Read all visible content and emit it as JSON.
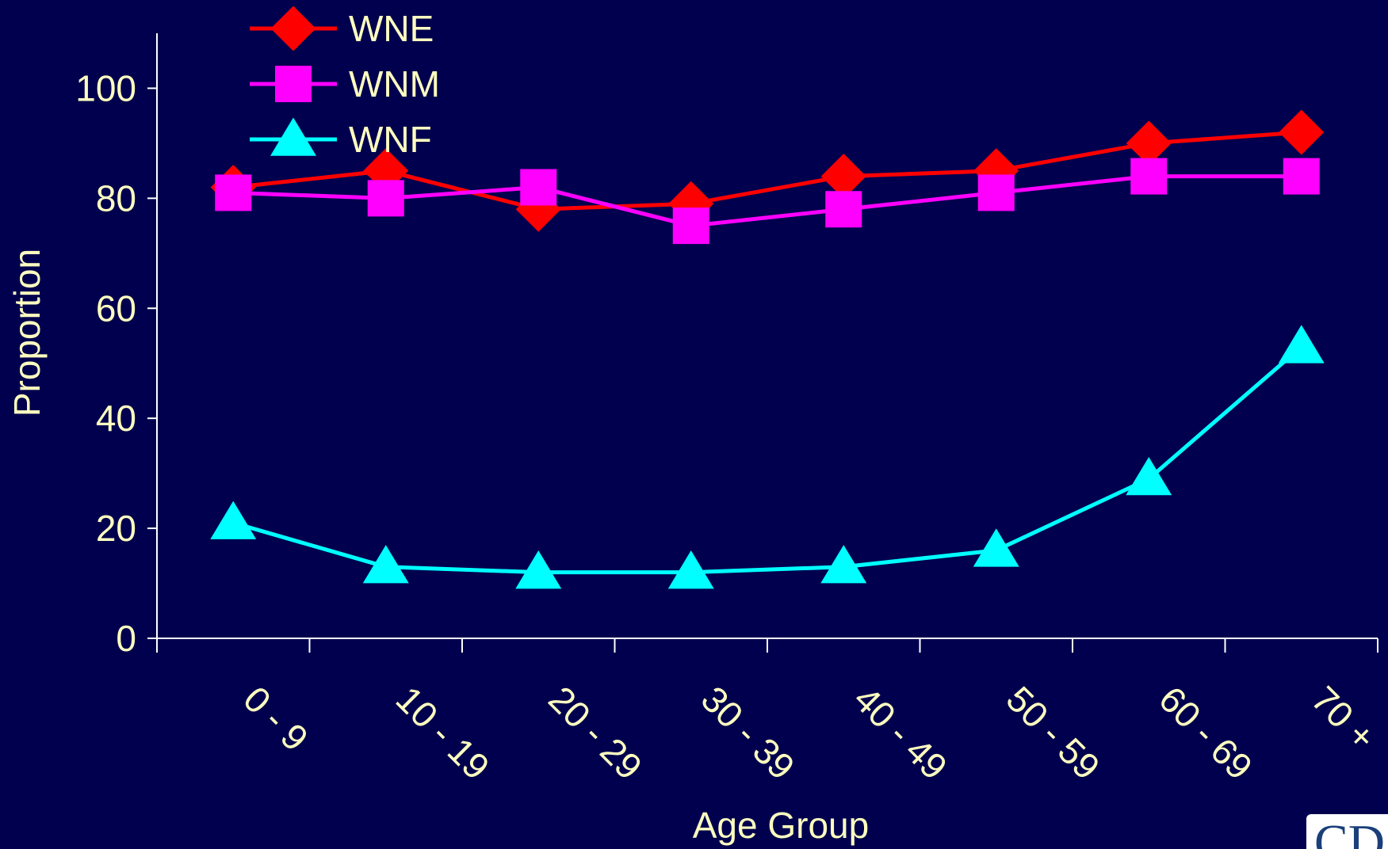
{
  "chart_data": {
    "type": "line",
    "title": "",
    "xlabel": "Age Group",
    "ylabel": "Proportion",
    "categories": [
      "0 - 9",
      "10 - 19",
      "20 - 29",
      "30 - 39",
      "40 - 49",
      "50 - 59",
      "60 - 69",
      "70 +"
    ],
    "ylim": [
      0,
      110
    ],
    "yticks": [
      "0",
      "20",
      "40",
      "60",
      "80",
      "100"
    ],
    "grid": false,
    "legend_position": "top-left",
    "series": [
      {
        "name": "WNE",
        "marker": "diamond",
        "color": "#ff0000",
        "values": [
          82,
          85,
          78,
          79,
          84,
          85,
          90,
          92
        ]
      },
      {
        "name": "WNM",
        "marker": "square",
        "color": "#ff00ff",
        "values": [
          81,
          80,
          82,
          75,
          78,
          81,
          84,
          84
        ]
      },
      {
        "name": "WNF",
        "marker": "triangle",
        "color": "#00ffff",
        "values": [
          21,
          13,
          12,
          12,
          13,
          16,
          29,
          53
        ]
      }
    ],
    "corner_logo_text": "CD"
  },
  "colors": {
    "background": "#00004e",
    "axis": "#ffffff",
    "text": "#ffffc0"
  }
}
